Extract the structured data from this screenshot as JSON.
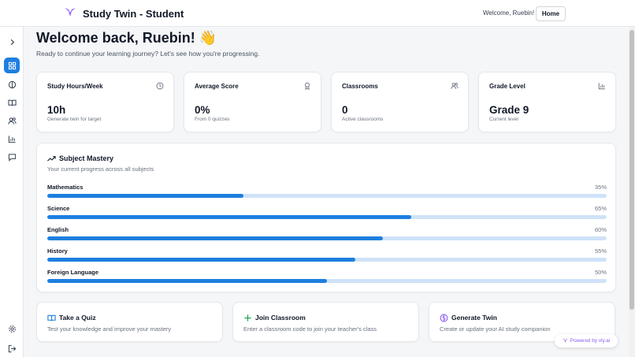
{
  "header": {
    "app_title": "Study Twin - Student",
    "welcome_text": "Welcome, Ruebin!",
    "home_label": "Home",
    "logo_icon": "bird-logo-icon",
    "brand_color": "#8b5cf6"
  },
  "sidebar": {
    "items": [
      {
        "icon": "chevron-right-icon",
        "active": false
      },
      {
        "icon": "dashboard-grid-icon",
        "active": true
      },
      {
        "icon": "brain-icon",
        "active": false
      },
      {
        "icon": "book-open-icon",
        "active": false
      },
      {
        "icon": "users-icon",
        "active": false
      },
      {
        "icon": "bar-chart-icon",
        "active": false
      },
      {
        "icon": "message-icon",
        "active": false
      },
      {
        "icon": "settings-gear-icon",
        "active": false
      },
      {
        "icon": "logout-icon",
        "active": false
      }
    ],
    "accent": "#1d7fe0"
  },
  "main": {
    "title": "Welcome back, Ruebin! 👋",
    "subtitle": "Ready to continue your learning journey? Let's see how you're progressing."
  },
  "stats": [
    {
      "label": "Study Hours/Week",
      "value": "10h",
      "note": "Generate twin for target",
      "icon": "clock-icon"
    },
    {
      "label": "Average Score",
      "value": "0%",
      "note": "From 0 quizzes",
      "icon": "award-icon"
    },
    {
      "label": "Classrooms",
      "value": "0",
      "note": "Active classrooms",
      "icon": "users-icon"
    },
    {
      "label": "Grade Level",
      "value": "Grade 9",
      "note": "Current level",
      "icon": "bar-chart-icon"
    }
  ],
  "mastery": {
    "title": "Subject Mastery",
    "subtitle": "Your current progress across all subjects",
    "icon": "trending-up-icon",
    "subjects": [
      {
        "name": "Mathematics",
        "pct_label": "35%",
        "progress": 35
      },
      {
        "name": "Science",
        "pct_label": "65%",
        "progress": 65
      },
      {
        "name": "English",
        "pct_label": "60%",
        "progress": 60
      },
      {
        "name": "History",
        "pct_label": "55%",
        "progress": 55
      },
      {
        "name": "Foreign Language",
        "pct_label": "50%",
        "progress": 50
      }
    ]
  },
  "actions": [
    {
      "title": "Take a Quiz",
      "desc": "Test your knowledge and improve your mastery",
      "icon": "book-open-icon",
      "color": "#1d7fe0"
    },
    {
      "title": "Join Classroom",
      "desc": "Enter a classroom code to join your teacher's class",
      "icon": "plus-icon",
      "color": "#16a34a"
    },
    {
      "title": "Generate Twin",
      "desc": "Create or update your AI study companion",
      "icon": "brain-icon",
      "color": "#8b5cf6"
    }
  ],
  "powered_by": "Powered by vly.ai"
}
